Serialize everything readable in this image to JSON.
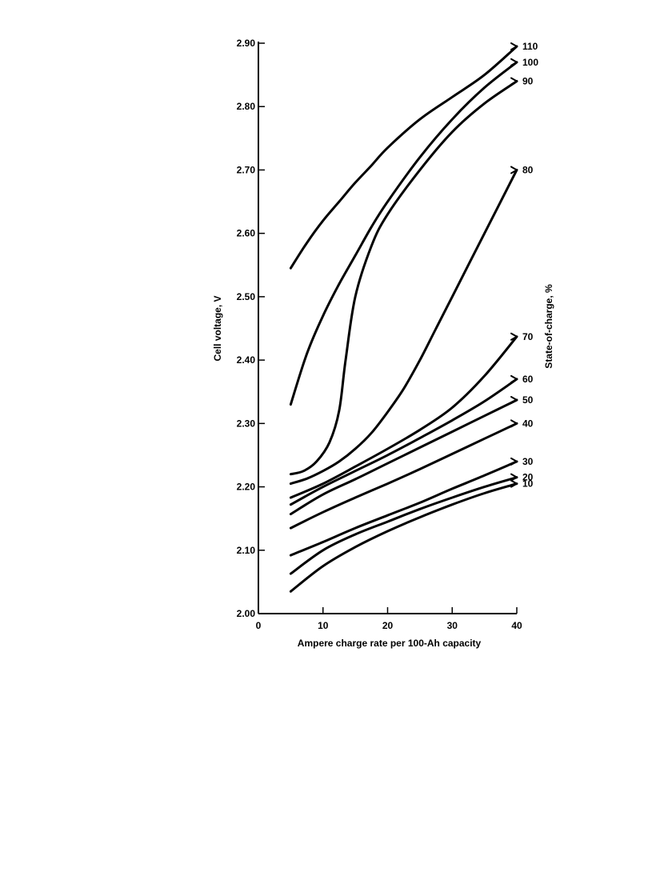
{
  "chart_data": {
    "type": "line",
    "xlabel": "Ampere charge rate per 100-Ah capacity",
    "ylabel": "Cell voltage, V",
    "y2label": "State-of-charge, %",
    "xlim": [
      0,
      40
    ],
    "ylim": [
      2.0,
      2.9
    ],
    "x_ticks": [
      "0",
      "10",
      "20",
      "30",
      "40"
    ],
    "y_ticks": [
      "2.00",
      "2.10",
      "2.20",
      "2.30",
      "2.40",
      "2.50",
      "2.60",
      "2.70",
      "2.80",
      "2.90"
    ],
    "grid": false,
    "series": [
      {
        "name": "10",
        "x": [
          5,
          10,
          15,
          20,
          25,
          30,
          35,
          40
        ],
        "y": [
          2.035,
          2.075,
          2.105,
          2.13,
          2.152,
          2.172,
          2.19,
          2.205
        ]
      },
      {
        "name": "20",
        "x": [
          5,
          10,
          15,
          20,
          25,
          30,
          35,
          40
        ],
        "y": [
          2.063,
          2.1,
          2.125,
          2.145,
          2.165,
          2.183,
          2.2,
          2.215
        ]
      },
      {
        "name": "30",
        "x": [
          5,
          10,
          15,
          20,
          25,
          30,
          35,
          40
        ],
        "y": [
          2.092,
          2.113,
          2.135,
          2.155,
          2.175,
          2.197,
          2.218,
          2.24
        ]
      },
      {
        "name": "40",
        "x": [
          5,
          10,
          15,
          20,
          25,
          30,
          35,
          40
        ],
        "y": [
          2.135,
          2.16,
          2.183,
          2.205,
          2.228,
          2.252,
          2.276,
          2.3
        ]
      },
      {
        "name": "50",
        "x": [
          5,
          10,
          15,
          20,
          25,
          30,
          35,
          40
        ],
        "y": [
          2.157,
          2.188,
          2.212,
          2.237,
          2.262,
          2.287,
          2.312,
          2.337
        ]
      },
      {
        "name": "60",
        "x": [
          5,
          10,
          15,
          20,
          25,
          30,
          35,
          40
        ],
        "y": [
          2.172,
          2.2,
          2.225,
          2.25,
          2.277,
          2.305,
          2.335,
          2.37
        ]
      },
      {
        "name": "70",
        "x": [
          5,
          10,
          15,
          20,
          25,
          30,
          35,
          40
        ],
        "y": [
          2.183,
          2.205,
          2.232,
          2.26,
          2.29,
          2.325,
          2.375,
          2.437
        ]
      },
      {
        "name": "80",
        "x": [
          5,
          7.5,
          10,
          12.5,
          15,
          17.5,
          20,
          22.5,
          25,
          27.5,
          30,
          32.5,
          35,
          37.5,
          40
        ],
        "y": [
          2.205,
          2.213,
          2.225,
          2.24,
          2.26,
          2.285,
          2.318,
          2.355,
          2.4,
          2.45,
          2.5,
          2.55,
          2.6,
          2.65,
          2.7
        ]
      },
      {
        "name": "90",
        "x": [
          5,
          7,
          9,
          11,
          12.5,
          13.5,
          15,
          17.5,
          20,
          25,
          30,
          35,
          40
        ],
        "y": [
          2.22,
          2.225,
          2.24,
          2.27,
          2.32,
          2.4,
          2.5,
          2.58,
          2.63,
          2.7,
          2.76,
          2.805,
          2.84
        ]
      },
      {
        "name": "100",
        "x": [
          5,
          7.5,
          10,
          12.5,
          15,
          17.5,
          20,
          25,
          30,
          35,
          40
        ],
        "y": [
          2.33,
          2.41,
          2.47,
          2.52,
          2.565,
          2.61,
          2.65,
          2.72,
          2.78,
          2.83,
          2.87
        ]
      },
      {
        "name": "110",
        "x": [
          5,
          7.5,
          10,
          12.5,
          15,
          17.5,
          20,
          25,
          30,
          35,
          40
        ],
        "y": [
          2.545,
          2.585,
          2.62,
          2.65,
          2.68,
          2.707,
          2.735,
          2.78,
          2.815,
          2.85,
          2.895
        ]
      }
    ]
  }
}
